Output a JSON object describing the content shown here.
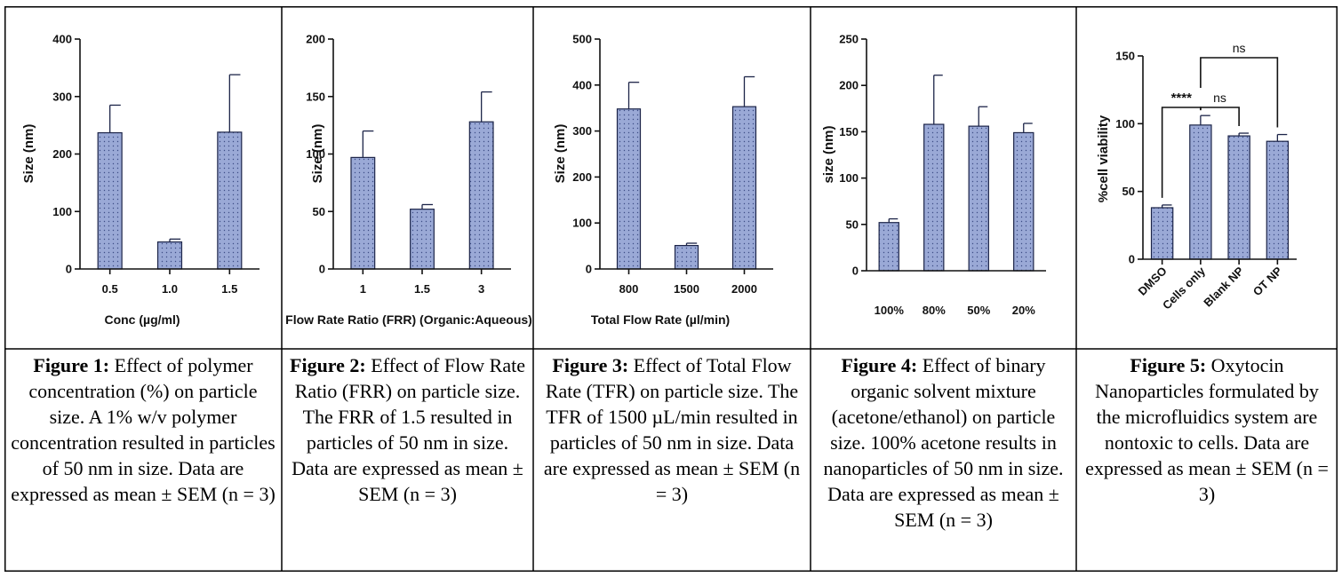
{
  "chart_data": [
    {
      "type": "bar",
      "categories": [
        "0.5",
        "1.0",
        "1.5"
      ],
      "values": [
        237,
        47,
        238
      ],
      "errors": [
        48,
        5,
        100
      ],
      "xlabel": "Conc (µg/ml)",
      "ylabel": "Size (nm)",
      "ylim": [
        0,
        400
      ],
      "yticks": [
        0,
        100,
        200,
        300,
        400
      ],
      "grid": false,
      "bar_color": "#9aa9d6",
      "caption": {
        "label": "Figure 1:",
        "text": " Effect of polymer concentration (%) on particle size. A 1% w/v polymer concentration resulted in particles of 50 nm in size. Data are expressed as mean ± SEM (n = 3)"
      }
    },
    {
      "type": "bar",
      "categories": [
        "1",
        "1.5",
        "3"
      ],
      "values": [
        97,
        52,
        128
      ],
      "errors": [
        23,
        4,
        26
      ],
      "xlabel": "Flow Rate Ratio (FRR) (Organic:Aqueous)",
      "ylabel": "Size (nm)",
      "ylim": [
        0,
        200
      ],
      "yticks": [
        0,
        50,
        100,
        150,
        200
      ],
      "grid": false,
      "bar_color": "#9aa9d6",
      "caption": {
        "label": "Figure 2:",
        "text": " Effect of Flow Rate Ratio (FRR) on particle size. The FRR of 1.5 resulted in particles of 50 nm in size. Data are expressed as mean ± SEM (n = 3)"
      }
    },
    {
      "type": "bar",
      "categories": [
        "800",
        "1500",
        "2000"
      ],
      "values": [
        348,
        51,
        353
      ],
      "errors": [
        58,
        5,
        65
      ],
      "xlabel": "Total Flow Rate (µl/min)",
      "ylabel": "Size (nm)",
      "ylim": [
        0,
        500
      ],
      "yticks": [
        0,
        100,
        200,
        300,
        400,
        500
      ],
      "grid": false,
      "bar_color": "#9aa9d6",
      "caption": {
        "label": "Figure 3:",
        "text": " Effect of Total Flow Rate (TFR) on particle size. The TFR of 1500 µL/min resulted in particles of 50 nm in size. Data are expressed as mean ± SEM (n = 3)"
      }
    },
    {
      "type": "bar",
      "categories": [
        "100%",
        "80%",
        "50%",
        "20%"
      ],
      "values": [
        52,
        158,
        156,
        149
      ],
      "errors": [
        4,
        53,
        21,
        10
      ],
      "xlabel": "",
      "ylabel": "size (nm)",
      "ylim": [
        0,
        250
      ],
      "yticks": [
        0,
        50,
        100,
        150,
        200,
        250
      ],
      "grid": false,
      "bar_color": "#9aa9d6",
      "caption": {
        "label": "Figure 4:",
        "text": " Effect of binary organic solvent mixture (acetone/ethanol) on particle size. 100% acetone results in nanoparticles of 50 nm in size. Data are expressed as mean ± SEM (n = 3)"
      }
    },
    {
      "type": "bar",
      "categories": [
        "DMSO",
        "Cells only",
        "Blank NP",
        "OT NP"
      ],
      "values": [
        38,
        99,
        91,
        87
      ],
      "errors": [
        2,
        7,
        2,
        5
      ],
      "xlabel": "",
      "ylabel": "%cell viability",
      "ylim": [
        0,
        150
      ],
      "yticks": [
        0,
        50,
        100,
        150
      ],
      "grid": false,
      "bar_color": "#9aa9d6",
      "significance": [
        {
          "from": 0,
          "to": 1,
          "label": "****"
        },
        {
          "from": 1,
          "to": 2,
          "label": "ns"
        },
        {
          "from": 1,
          "to": 3,
          "label": "ns"
        }
      ],
      "caption": {
        "label": "Figure 5:",
        "text": " Oxytocin Nanoparticles formulated by the microfluidics system are nontoxic to cells. Data are expressed as mean ± SEM (n = 3)"
      }
    }
  ]
}
